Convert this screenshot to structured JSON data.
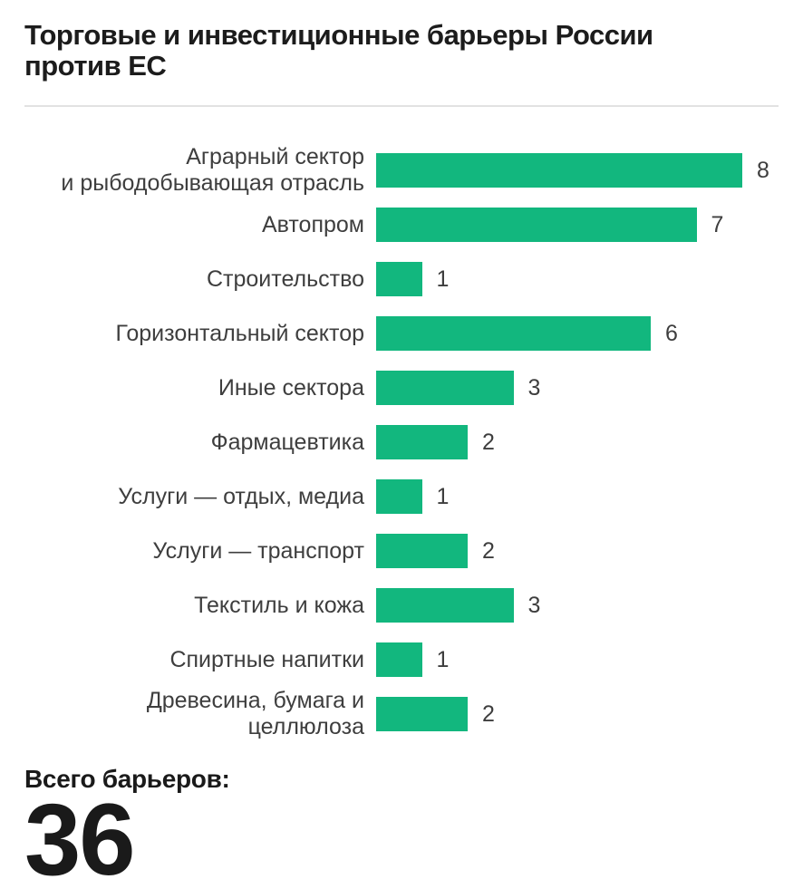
{
  "title": "Торговые и инвестиционные барьеры России\nпротив ЕС",
  "colors": {
    "bar": "#12b77e",
    "label_text": "#3e3e3e",
    "title_text": "#1c1c1c",
    "divider": "#e2e2e2",
    "background": "#ffffff"
  },
  "chart_data": {
    "type": "bar",
    "orientation": "horizontal",
    "title": "Торговые и инвестиционные барьеры России против ЕС",
    "categories": [
      "Аграрный сектор\nи рыбодобывающая отрасль",
      "Автопром",
      "Строительство",
      "Горизонтальный сектор",
      "Иные сектора",
      "Фармацевтика",
      "Услуги — отдых, медиа",
      "Услуги — транспорт",
      "Текстиль и кожа",
      "Спиртные напитки",
      "Древесина, бумага и целлюлоза"
    ],
    "values": [
      8,
      7,
      1,
      6,
      3,
      2,
      1,
      2,
      3,
      1,
      2
    ],
    "xlim": [
      0,
      8
    ],
    "grid": false,
    "legend": false,
    "value_labels": "end-of-bar",
    "bar_color": "#12b77e"
  },
  "footer": {
    "label": "Всего барьеров:",
    "total": "36"
  }
}
